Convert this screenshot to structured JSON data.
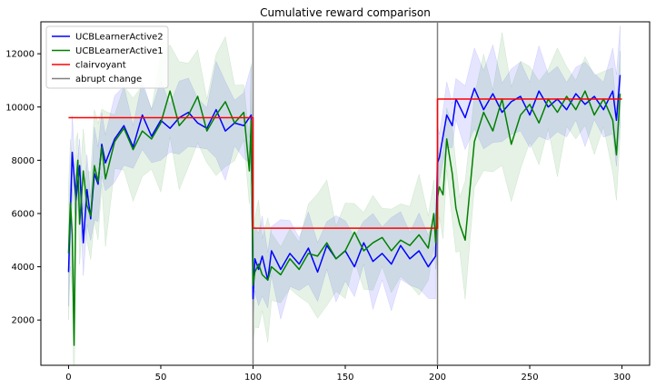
{
  "chart_data": {
    "type": "line",
    "title": "Cumulative reward comparison",
    "xlabel": "",
    "ylabel": "",
    "xlim": [
      -15,
      315
    ],
    "ylim": [
      300,
      13200
    ],
    "x_ticks": [
      0,
      50,
      100,
      150,
      200,
      250,
      300
    ],
    "y_ticks": [
      2000,
      4000,
      6000,
      8000,
      10000,
      12000
    ],
    "grid": false,
    "legend_position": "top-left",
    "series": [
      {
        "name": "UCBLearnerActive2",
        "color": "#0000ff",
        "band": true,
        "x": [
          0,
          2,
          4,
          6,
          8,
          10,
          12,
          14,
          16,
          18,
          20,
          25,
          30,
          35,
          40,
          45,
          50,
          55,
          60,
          65,
          70,
          75,
          80,
          85,
          90,
          95,
          99,
          100,
          101,
          103,
          105,
          108,
          110,
          115,
          120,
          125,
          130,
          135,
          140,
          145,
          150,
          155,
          160,
          165,
          170,
          175,
          180,
          185,
          190,
          195,
          199,
          200,
          201,
          203,
          205,
          208,
          210,
          215,
          220,
          225,
          230,
          235,
          240,
          245,
          250,
          255,
          260,
          265,
          270,
          275,
          280,
          285,
          290,
          295,
          297,
          299
        ],
        "values": [
          3800,
          8300,
          6500,
          7800,
          4900,
          6900,
          5800,
          7500,
          7100,
          8600,
          7900,
          8800,
          9300,
          8500,
          9700,
          8900,
          9500,
          9200,
          9600,
          9800,
          9400,
          9200,
          9900,
          9100,
          9400,
          9300,
          9700,
          2800,
          4300,
          3900,
          4400,
          3500,
          4600,
          3900,
          4500,
          4100,
          4700,
          3800,
          4800,
          4300,
          4600,
          4000,
          4900,
          4200,
          4500,
          4100,
          4800,
          4300,
          4600,
          4000,
          4400,
          7900,
          8100,
          8900,
          9700,
          9300,
          10300,
          9600,
          10700,
          9900,
          10500,
          9800,
          10200,
          10400,
          9700,
          10600,
          10000,
          10300,
          9900,
          10500,
          10100,
          10400,
          9900,
          10600,
          9500,
          11200
        ],
        "band_spread": 1300
      },
      {
        "name": "UCBLearnerActive1",
        "color": "#008000",
        "band": true,
        "x": [
          0,
          1,
          2,
          3,
          4,
          5,
          6,
          8,
          10,
          12,
          14,
          16,
          18,
          20,
          25,
          30,
          35,
          40,
          45,
          50,
          55,
          60,
          65,
          70,
          75,
          80,
          85,
          90,
          95,
          98,
          99,
          100,
          101,
          103,
          105,
          108,
          110,
          115,
          120,
          125,
          130,
          135,
          140,
          145,
          150,
          155,
          160,
          165,
          170,
          175,
          180,
          185,
          190,
          195,
          198,
          199,
          200,
          201,
          203,
          205,
          208,
          210,
          212,
          215,
          220,
          225,
          230,
          235,
          240,
          245,
          250,
          255,
          260,
          265,
          270,
          275,
          280,
          285,
          290,
          295,
          297,
          299
        ],
        "values": [
          4500,
          6400,
          5200,
          1050,
          6900,
          8000,
          5600,
          7600,
          6300,
          5900,
          7800,
          7200,
          8500,
          7300,
          8700,
          9200,
          8400,
          9100,
          8800,
          9400,
          10600,
          9300,
          9700,
          10400,
          9100,
          9700,
          10200,
          9400,
          9800,
          7600,
          9500,
          3300,
          3800,
          4100,
          3700,
          3500,
          4000,
          3700,
          4300,
          3900,
          4500,
          4400,
          4900,
          4300,
          4600,
          5300,
          4600,
          4900,
          5100,
          4600,
          5000,
          4800,
          5200,
          4700,
          6000,
          4900,
          6600,
          7000,
          6700,
          8800,
          7500,
          6200,
          5600,
          5000,
          8700,
          9800,
          9100,
          10300,
          8600,
          9700,
          10100,
          9400,
          10300,
          9800,
          10400,
          9900,
          10600,
          9700,
          10300,
          9500,
          8200,
          10500
        ],
        "band_spread": 1800
      },
      {
        "name": "clairvoyant",
        "color": "#ff0000",
        "band": false,
        "x": [
          0,
          100,
          100,
          200,
          200,
          300
        ],
        "values": [
          9600,
          9600,
          5450,
          5450,
          10300,
          10300
        ]
      },
      {
        "name": "abrupt change",
        "color": "#808080",
        "band": false,
        "vertical_lines": [
          100,
          200
        ]
      }
    ]
  }
}
